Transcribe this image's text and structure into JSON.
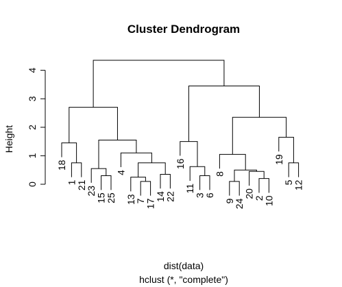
{
  "chart_data": {
    "type": "dendrogram",
    "title": "Cluster Dendrogram",
    "xlabel": "dist(data)",
    "sub": "hclust (*, \"complete\")",
    "ylabel": "Height",
    "ylim": [
      0,
      4.5
    ],
    "yticks": [
      0,
      1,
      2,
      3,
      4
    ],
    "hang": 0.5,
    "order": [
      "18",
      "1",
      "21",
      "23",
      "15",
      "25",
      "4",
      "13",
      "7",
      "17",
      "14",
      "22",
      "16",
      "11",
      "3",
      "6",
      "8",
      "9",
      "24",
      "20",
      "2",
      "10",
      "19",
      "5",
      "12"
    ],
    "merges": [
      {
        "a": "1",
        "b": "21",
        "height": 0.75
      },
      {
        "a": "18",
        "b": "m1",
        "height": 1.45
      },
      {
        "a": "15",
        "b": "25",
        "height": 0.3
      },
      {
        "a": "23",
        "b": "m3",
        "height": 0.55
      },
      {
        "a": "7",
        "b": "17",
        "height": 0.1
      },
      {
        "a": "13",
        "b": "m5",
        "height": 0.25
      },
      {
        "a": "14",
        "b": "22",
        "height": 0.35
      },
      {
        "a": "m6",
        "b": "m7",
        "height": 0.75
      },
      {
        "a": "4",
        "b": "m8",
        "height": 1.1
      },
      {
        "a": "m4",
        "b": "m9",
        "height": 1.55
      },
      {
        "a": "m2",
        "b": "m10",
        "height": 2.7
      },
      {
        "a": "3",
        "b": "6",
        "height": 0.3
      },
      {
        "a": "11",
        "b": "m12",
        "height": 0.62
      },
      {
        "a": "16",
        "b": "m13",
        "height": 1.5
      },
      {
        "a": "9",
        "b": "24",
        "height": 0.1
      },
      {
        "a": "2",
        "b": "10",
        "height": 0.2
      },
      {
        "a": "20",
        "b": "m16",
        "height": 0.45
      },
      {
        "a": "m15",
        "b": "m17",
        "height": 0.5
      },
      {
        "a": "8",
        "b": "m18",
        "height": 1.05
      },
      {
        "a": "5",
        "b": "12",
        "height": 0.75
      },
      {
        "a": "19",
        "b": "m20",
        "height": 1.65
      },
      {
        "a": "m19",
        "b": "m21",
        "height": 2.35
      },
      {
        "a": "m14",
        "b": "m22",
        "height": 3.45
      },
      {
        "a": "m11",
        "b": "m23",
        "height": 4.35
      }
    ]
  }
}
